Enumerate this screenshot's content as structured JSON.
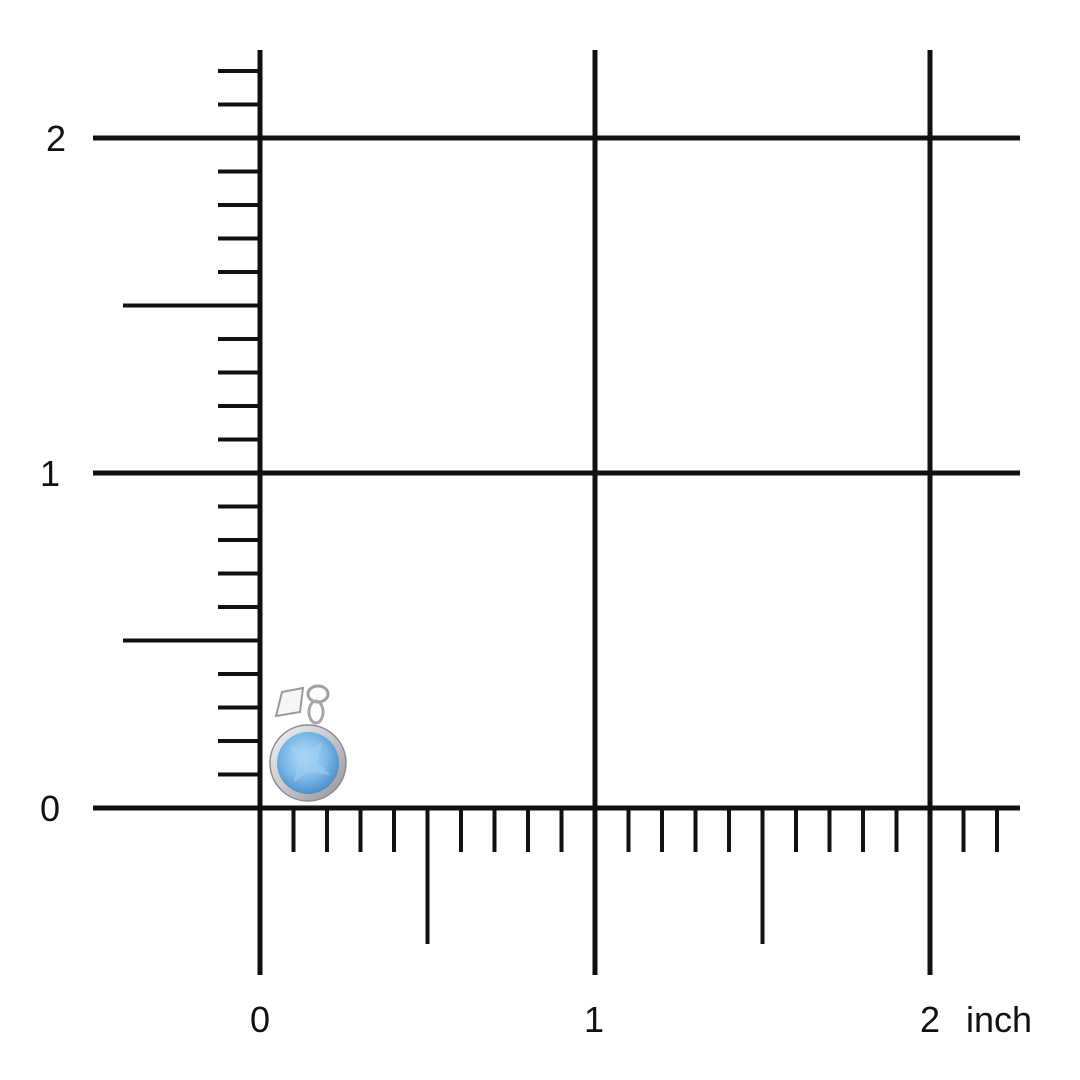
{
  "ruler": {
    "unit": "inch",
    "x_labels": [
      "0",
      "1",
      "2"
    ],
    "y_labels": [
      "0",
      "1",
      "2"
    ],
    "line_color": "#111111"
  },
  "product": {
    "gem_color": "#7ab8e8",
    "metal_color": "#d8d8dc"
  }
}
